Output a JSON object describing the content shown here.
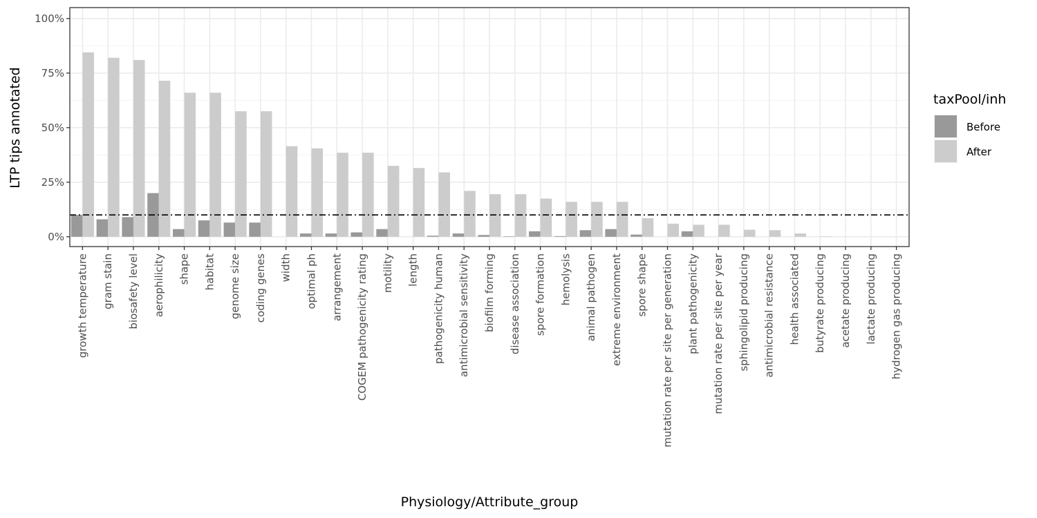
{
  "chart_data": {
    "type": "bar",
    "xlabel": "Physiology/Attribute_group",
    "ylabel": "LTP tips annotated",
    "ylim": [
      -0.045,
      1.05
    ],
    "yticks": [
      0,
      0.25,
      0.5,
      0.75,
      1.0
    ],
    "ytick_labels": [
      "0%",
      "25%",
      "50%",
      "75%",
      "100%"
    ],
    "reference_line": 0.1,
    "grid": true,
    "legend_position": "right",
    "legend_title": "taxPool/inh",
    "categories": [
      "growth temperature",
      "gram stain",
      "biosafety level",
      "aerophilicity",
      "shape",
      "habitat",
      "genome size",
      "coding genes",
      "width",
      "optimal ph",
      "arrangement",
      "COGEM pathogenicity rating",
      "motility",
      "length",
      "pathogenicity human",
      "antimicrobial sensitivity",
      "biofilm forming",
      "disease association",
      "spore formation",
      "hemolysis",
      "animal pathogen",
      "extreme environment",
      "spore shape",
      "mutation rate per site per generation",
      "plant pathogenicity",
      "mutation rate per site per year",
      "sphingolipid producing",
      "antimicrobial resistance",
      "health associated",
      "butyrate producing",
      "acetate producing",
      "lactate producing",
      "hydrogen gas producing"
    ],
    "series": [
      {
        "name": "Before",
        "color": "#999999",
        "values": [
          0.1,
          0.08,
          0.09,
          0.2,
          0.035,
          0.075,
          0.065,
          0.065,
          0.0,
          0.015,
          0.015,
          0.02,
          0.035,
          0.0,
          0.005,
          0.015,
          0.008,
          0.002,
          0.025,
          0.003,
          0.03,
          0.035,
          0.01,
          0.0,
          0.025,
          0.0,
          0.0,
          0.0,
          0.0,
          0.0,
          0.0,
          0.0,
          0.0
        ]
      },
      {
        "name": "After",
        "color": "#cccccc",
        "values": [
          0.845,
          0.82,
          0.81,
          0.715,
          0.66,
          0.66,
          0.575,
          0.575,
          0.415,
          0.405,
          0.385,
          0.385,
          0.325,
          0.315,
          0.295,
          0.21,
          0.195,
          0.195,
          0.175,
          0.16,
          0.16,
          0.16,
          0.085,
          0.06,
          0.055,
          0.055,
          0.032,
          0.03,
          0.015,
          0.002,
          0.0,
          0.0,
          0.0
        ]
      }
    ]
  }
}
